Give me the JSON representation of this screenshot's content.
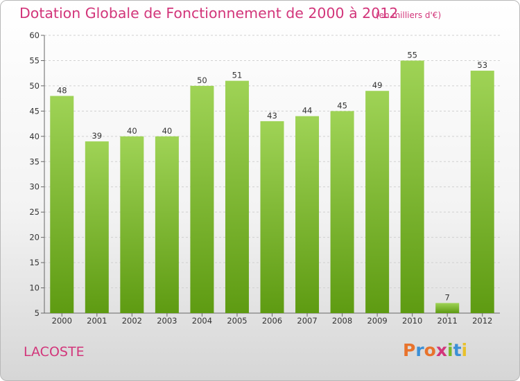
{
  "header": {
    "title": "Dotation Globale de Fonctionnement de 2000 à 2012",
    "unit": "(en milliers d'€)"
  },
  "footer": {
    "commune": "LACOSTE",
    "logo_text": "Proxiti"
  },
  "colors": {
    "title": "#d2357a",
    "bar_top": "#9fd356",
    "bar_bottom": "#5e9b12",
    "logo_letters": [
      "#e8732c",
      "#3b8fd6",
      "#e8732c",
      "#d2357a",
      "#7ab929",
      "#3b8fd6",
      "#e8c12c"
    ]
  },
  "chart_data": {
    "type": "bar",
    "title": "Dotation Globale de Fonctionnement de 2000 à 2012",
    "subtitle": "(en milliers d'€)",
    "categories": [
      "2000",
      "2001",
      "2002",
      "2003",
      "2004",
      "2005",
      "2006",
      "2007",
      "2008",
      "2009",
      "2010",
      "2011",
      "2012"
    ],
    "values": [
      48,
      39,
      40,
      40,
      50,
      51,
      43,
      44,
      45,
      49,
      55,
      7,
      53
    ],
    "ylim": [
      5,
      60
    ],
    "yticks": [
      5,
      10,
      15,
      20,
      25,
      30,
      35,
      40,
      45,
      50,
      55,
      60
    ],
    "grid": true,
    "data_labels": true
  }
}
